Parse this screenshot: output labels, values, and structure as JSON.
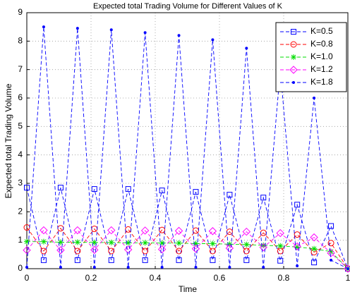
{
  "chart_data": {
    "type": "line",
    "title": "Expected total Trading Volume for Different Values of K",
    "x_label": "Time",
    "y_label": "Expected total Trading Volume",
    "x": [
      0,
      0.0526,
      0.1053,
      0.1579,
      0.2105,
      0.2632,
      0.3158,
      0.3684,
      0.4211,
      0.4737,
      0.5263,
      0.5789,
      0.6316,
      0.6842,
      0.7368,
      0.7895,
      0.8421,
      0.8947,
      0.9474,
      1
    ],
    "series": [
      {
        "name": "K=0.5",
        "color": "#0000ff",
        "marker": "square",
        "values": [
          2.85,
          0.3,
          2.85,
          0.3,
          2.8,
          0.3,
          2.8,
          0.3,
          2.75,
          0.3,
          2.7,
          0.3,
          2.6,
          0.3,
          2.5,
          0.28,
          2.25,
          0.22,
          1.5,
          0
        ]
      },
      {
        "name": "K=0.8",
        "color": "#ff0000",
        "marker": "circle",
        "values": [
          1.45,
          0.62,
          1.42,
          0.62,
          1.4,
          0.62,
          1.38,
          0.62,
          1.36,
          0.62,
          1.34,
          0.62,
          1.3,
          0.62,
          1.26,
          0.62,
          1.2,
          0.58,
          0.9,
          0
        ]
      },
      {
        "name": "K=1.0",
        "color": "#00dd00",
        "marker": "star",
        "values": [
          0.95,
          0.95,
          0.93,
          0.93,
          0.92,
          0.92,
          0.91,
          0.91,
          0.9,
          0.9,
          0.88,
          0.88,
          0.86,
          0.85,
          0.82,
          0.8,
          0.76,
          0.7,
          0.6,
          0
        ]
      },
      {
        "name": "K=1.2",
        "color": "#ff00ff",
        "marker": "diamond",
        "values": [
          0.65,
          1.35,
          0.65,
          1.35,
          0.66,
          1.35,
          0.67,
          1.34,
          0.68,
          1.33,
          0.7,
          1.32,
          0.72,
          1.3,
          0.75,
          1.25,
          0.78,
          1.1,
          0.55,
          0
        ]
      },
      {
        "name": "K=1.8",
        "color": "#0000ff",
        "marker": "point",
        "values": [
          0.05,
          8.5,
          0.05,
          8.45,
          0.05,
          8.4,
          0.05,
          8.3,
          0.05,
          8.2,
          0.05,
          8.05,
          0.05,
          7.75,
          0.05,
          7.0,
          0.1,
          6.0,
          0.3,
          0
        ]
      }
    ],
    "xlim": [
      0,
      1
    ],
    "xticks": [
      0,
      0.2,
      0.4,
      0.6,
      0.8,
      1
    ],
    "ylim": [
      0,
      9
    ],
    "yticks": [
      0,
      1,
      2,
      3,
      4,
      5,
      6,
      7,
      8,
      9
    ],
    "grid": true,
    "legend": "northeast"
  }
}
